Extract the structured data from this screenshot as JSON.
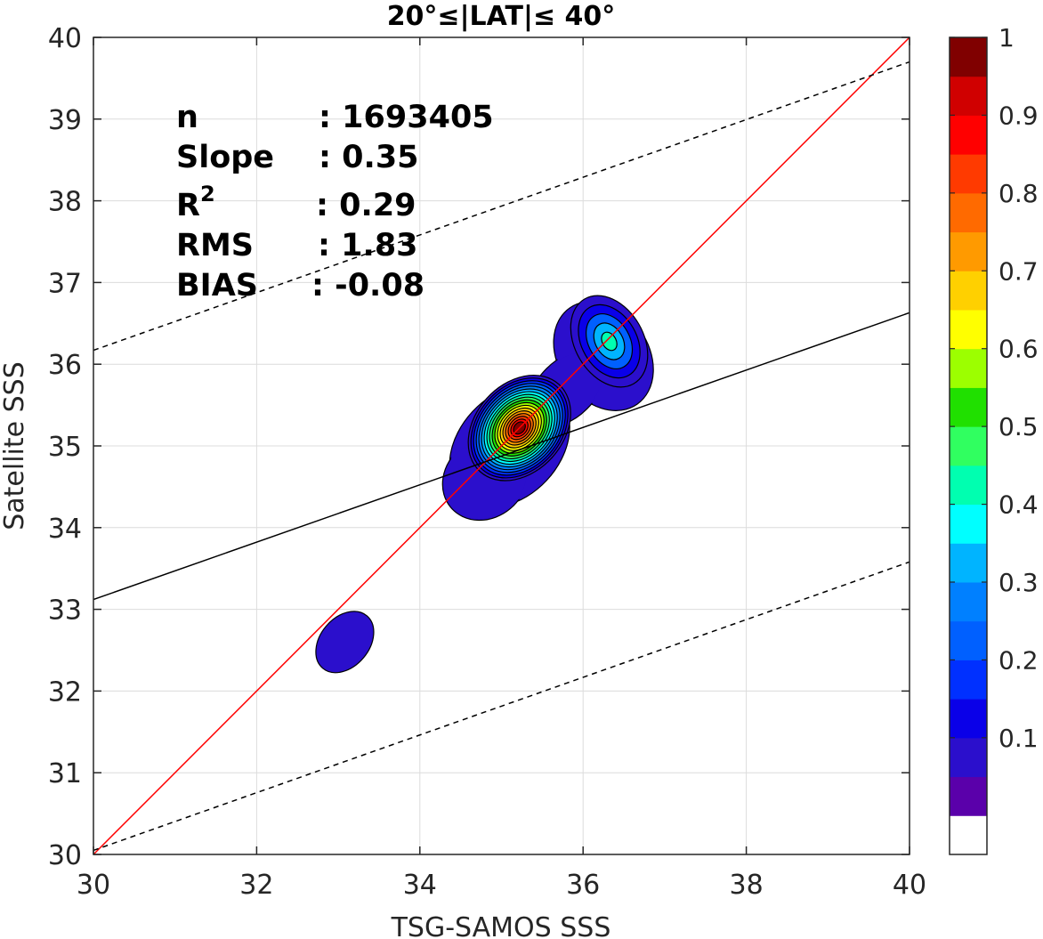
{
  "chart_data": {
    "type": "contour",
    "title": "20°≤|LAT|≤ 40°",
    "xlabel": "TSG-SAMOS SSS",
    "ylabel": "Satellite SSS",
    "xlim": [
      30,
      40
    ],
    "ylim": [
      30,
      40
    ],
    "xticks": [
      "30",
      "32",
      "34",
      "36",
      "38",
      "40"
    ],
    "yticks": [
      "30",
      "31",
      "32",
      "33",
      "34",
      "35",
      "36",
      "37",
      "38",
      "39",
      "40"
    ],
    "grid": true,
    "stats": {
      "n_label": "n",
      "n_value": ": 1693405",
      "slope_label": "Slope",
      "slope_value": ": 0.35",
      "r2_label": "R",
      "r2_sup": "2",
      "r2_value": ": 0.29",
      "rms_label": "RMS",
      "rms_value": ": 1.83",
      "bias_label": "BIAS",
      "bias_value": ": -0.08"
    },
    "lines": [
      {
        "name": "one-to-one",
        "color": "#ff0000",
        "style": "solid",
        "x": [
          30,
          40
        ],
        "y": [
          30,
          40
        ]
      },
      {
        "name": "fit",
        "color": "#000000",
        "style": "solid",
        "x": [
          30,
          40
        ],
        "y": [
          33.12,
          36.63
        ]
      },
      {
        "name": "fit-plus-2rms",
        "color": "#000000",
        "style": "dashed",
        "x": [
          30,
          40
        ],
        "y": [
          36.17,
          39.7
        ]
      },
      {
        "name": "fit-minus-2rms",
        "color": "#000000",
        "style": "dashed",
        "x": [
          30,
          40
        ],
        "y": [
          30.05,
          33.58
        ]
      }
    ],
    "density_peaks": [
      {
        "x": 35.22,
        "y": 35.22,
        "peak": 0.95
      },
      {
        "x": 36.32,
        "y": 36.28,
        "peak": 0.42
      },
      {
        "x": 33.08,
        "y": 32.6,
        "peak": 0.08
      }
    ],
    "colorbar": {
      "ticks": [
        "0.1",
        "0.2",
        "0.3",
        "0.4",
        "0.5",
        "0.6",
        "0.7",
        "0.8",
        "0.9",
        "1"
      ],
      "tick_values": [
        0.1,
        0.2,
        0.3,
        0.4,
        0.5,
        0.6,
        0.7,
        0.8,
        0.9,
        1.0
      ],
      "levels": [
        0,
        0.05,
        0.1,
        0.15,
        0.2,
        0.25,
        0.3,
        0.35,
        0.4,
        0.45,
        0.5,
        0.55,
        0.6,
        0.65,
        0.7,
        0.75,
        0.8,
        0.85,
        0.9,
        0.95,
        1.0
      ],
      "colors": [
        "#ffffff",
        "#5a00aa",
        "#2b0fcc",
        "#0a00e8",
        "#0030ff",
        "#0060ff",
        "#0080ff",
        "#00b4ff",
        "#00ffff",
        "#00ffb0",
        "#30ff60",
        "#20e000",
        "#9cff00",
        "#ffff00",
        "#ffd000",
        "#ff9a00",
        "#ff6a00",
        "#ff3a00",
        "#ff0000",
        "#d00000",
        "#800000"
      ]
    }
  }
}
